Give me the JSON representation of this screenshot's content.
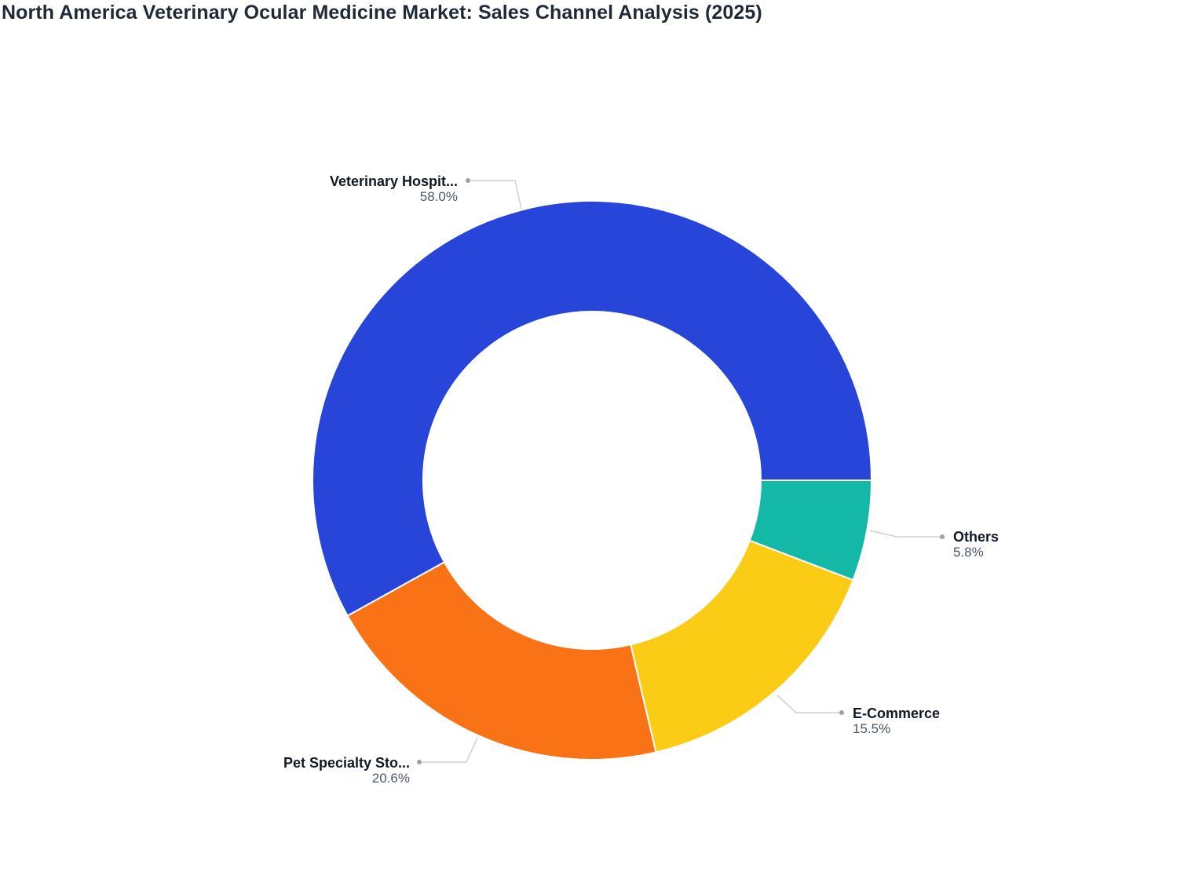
{
  "title": "North America Veterinary Ocular Medicine Market: Sales Channel Analysis (2025)",
  "chart_data": {
    "type": "pie",
    "donut": true,
    "title": "North America Veterinary Ocular Medicine Market: Sales Channel Analysis (2025)",
    "categories": [
      "Veterinary Hospitals",
      "Pet Specialty Stores",
      "E-Commerce",
      "Others"
    ],
    "display_labels": [
      "Veterinary Hospit...",
      "Pet Specialty Sto...",
      "E-Commerce",
      "Others"
    ],
    "values": [
      58.0,
      20.6,
      15.5,
      5.8
    ],
    "value_labels": [
      "58.0%",
      "20.6%",
      "15.5%",
      "5.8%"
    ],
    "colors": [
      "#2845d9",
      "#f97316",
      "#facc15",
      "#14b8a6"
    ],
    "unit": "%",
    "legend": "none (outside labels with leader lines)"
  },
  "labels": {
    "vet": {
      "name": "Veterinary Hospit...",
      "pct": "58.0%"
    },
    "pet": {
      "name": "Pet Specialty Sto...",
      "pct": "20.6%"
    },
    "ecom": {
      "name": "E-Commerce",
      "pct": "15.5%"
    },
    "others": {
      "name": "Others",
      "pct": "5.8%"
    }
  }
}
